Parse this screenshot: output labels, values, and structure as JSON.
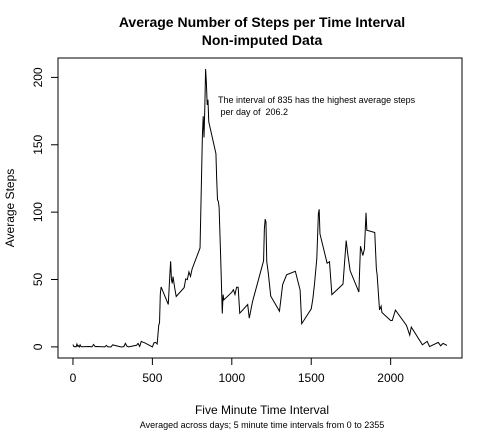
{
  "chart_data": {
    "type": "line",
    "title": [
      "Average Number of Steps per Time Interval",
      "Non-imputed Data"
    ],
    "xlabel": "Five Minute Time Interval",
    "subtitle": "Averaged across days; 5 minute time intervals from 0 to 2355",
    "ylabel": "Average Steps",
    "annotation": [
      "The interval of 835 has the highest average steps",
      " per day of  206.2"
    ],
    "color": "#000000",
    "xlim": [
      -94.2,
      2449.2
    ],
    "xticks": [
      0,
      500,
      1000,
      1500,
      2000
    ],
    "ylim": [
      -8.25,
      214.4
    ],
    "yticks": [
      0,
      50,
      100,
      150,
      200
    ],
    "x": [
      0,
      5,
      10,
      15,
      20,
      25,
      30,
      35,
      40,
      45,
      50,
      55,
      100,
      110,
      120,
      130,
      140,
      150,
      200,
      210,
      220,
      230,
      240,
      250,
      300,
      310,
      320,
      330,
      340,
      350,
      400,
      410,
      420,
      430,
      440,
      450,
      500,
      510,
      520,
      530,
      540,
      545,
      550,
      555,
      600,
      610,
      615,
      620,
      625,
      630,
      640,
      650,
      700,
      710,
      720,
      730,
      740,
      750,
      800,
      810,
      815,
      820,
      825,
      830,
      835,
      840,
      845,
      850,
      855,
      900,
      905,
      910,
      915,
      920,
      930,
      940,
      945,
      950,
      1000,
      1010,
      1020,
      1030,
      1040,
      1050,
      1100,
      1110,
      1130,
      1200,
      1205,
      1210,
      1215,
      1220,
      1230,
      1245,
      1300,
      1320,
      1345,
      1400,
      1430,
      1440,
      1500,
      1510,
      1520,
      1535,
      1545,
      1550,
      1555,
      1600,
      1615,
      1630,
      1700,
      1720,
      1730,
      1745,
      1800,
      1810,
      1825,
      1835,
      1845,
      1850,
      1900,
      1910,
      1915,
      1930,
      1940,
      1945,
      2000,
      2010,
      2030,
      2100,
      2120,
      2130,
      2200,
      2230,
      2245,
      2300,
      2315,
      2330,
      2355
    ],
    "values": [
      1.7,
      0.3,
      0.1,
      0.2,
      0.1,
      2.1,
      0.5,
      0.9,
      0,
      1.5,
      0.3,
      0.1,
      0.3,
      0.2,
      0,
      1.8,
      0.2,
      0.3,
      0,
      1.1,
      0,
      0,
      0,
      1.5,
      0,
      0,
      0.2,
      2.6,
      0.5,
      0,
      1.2,
      2.6,
      0.3,
      4.1,
      3.5,
      3.1,
      0,
      3.0,
      3.3,
      2.1,
      16,
      18,
      39.5,
      44.5,
      31.5,
      53.8,
      63.5,
      50,
      47.1,
      52.2,
      44,
      37.4,
      44,
      50.5,
      49.9,
      55.7,
      52.3,
      57.8,
      73.4,
      129.4,
      157.5,
      171.2,
      155.4,
      177.3,
      206.2,
      195.9,
      179.6,
      183.4,
      167,
      143.5,
      124,
      109.1,
      108.1,
      103.7,
      66.2,
      24.8,
      38.8,
      34.9,
      40.6,
      42.4,
      38.9,
      44.3,
      44.3,
      25,
      31.4,
      21.3,
      33.4,
      63.9,
      87.6,
      94.8,
      92.8,
      63.4,
      54.5,
      37.7,
      26.5,
      46.2,
      53.5,
      56.1,
      42.2,
      17.2,
      28.2,
      35.5,
      46.0,
      65.3,
      98.7,
      102.1,
      83.9,
      62.1,
      63.2,
      38.8,
      46.6,
      78.9,
      68.9,
      56.5,
      40.7,
      74.7,
      67.8,
      72.7,
      99.5,
      86.6,
      84.9,
      58,
      53.4,
      27.4,
      30.2,
      25.5,
      19.6,
      19.6,
      27.3,
      15.9,
      8.7,
      14.7,
      1.6,
      4.1,
      0.2,
      3.3,
      0.8,
      2.6,
      1.1
    ]
  }
}
